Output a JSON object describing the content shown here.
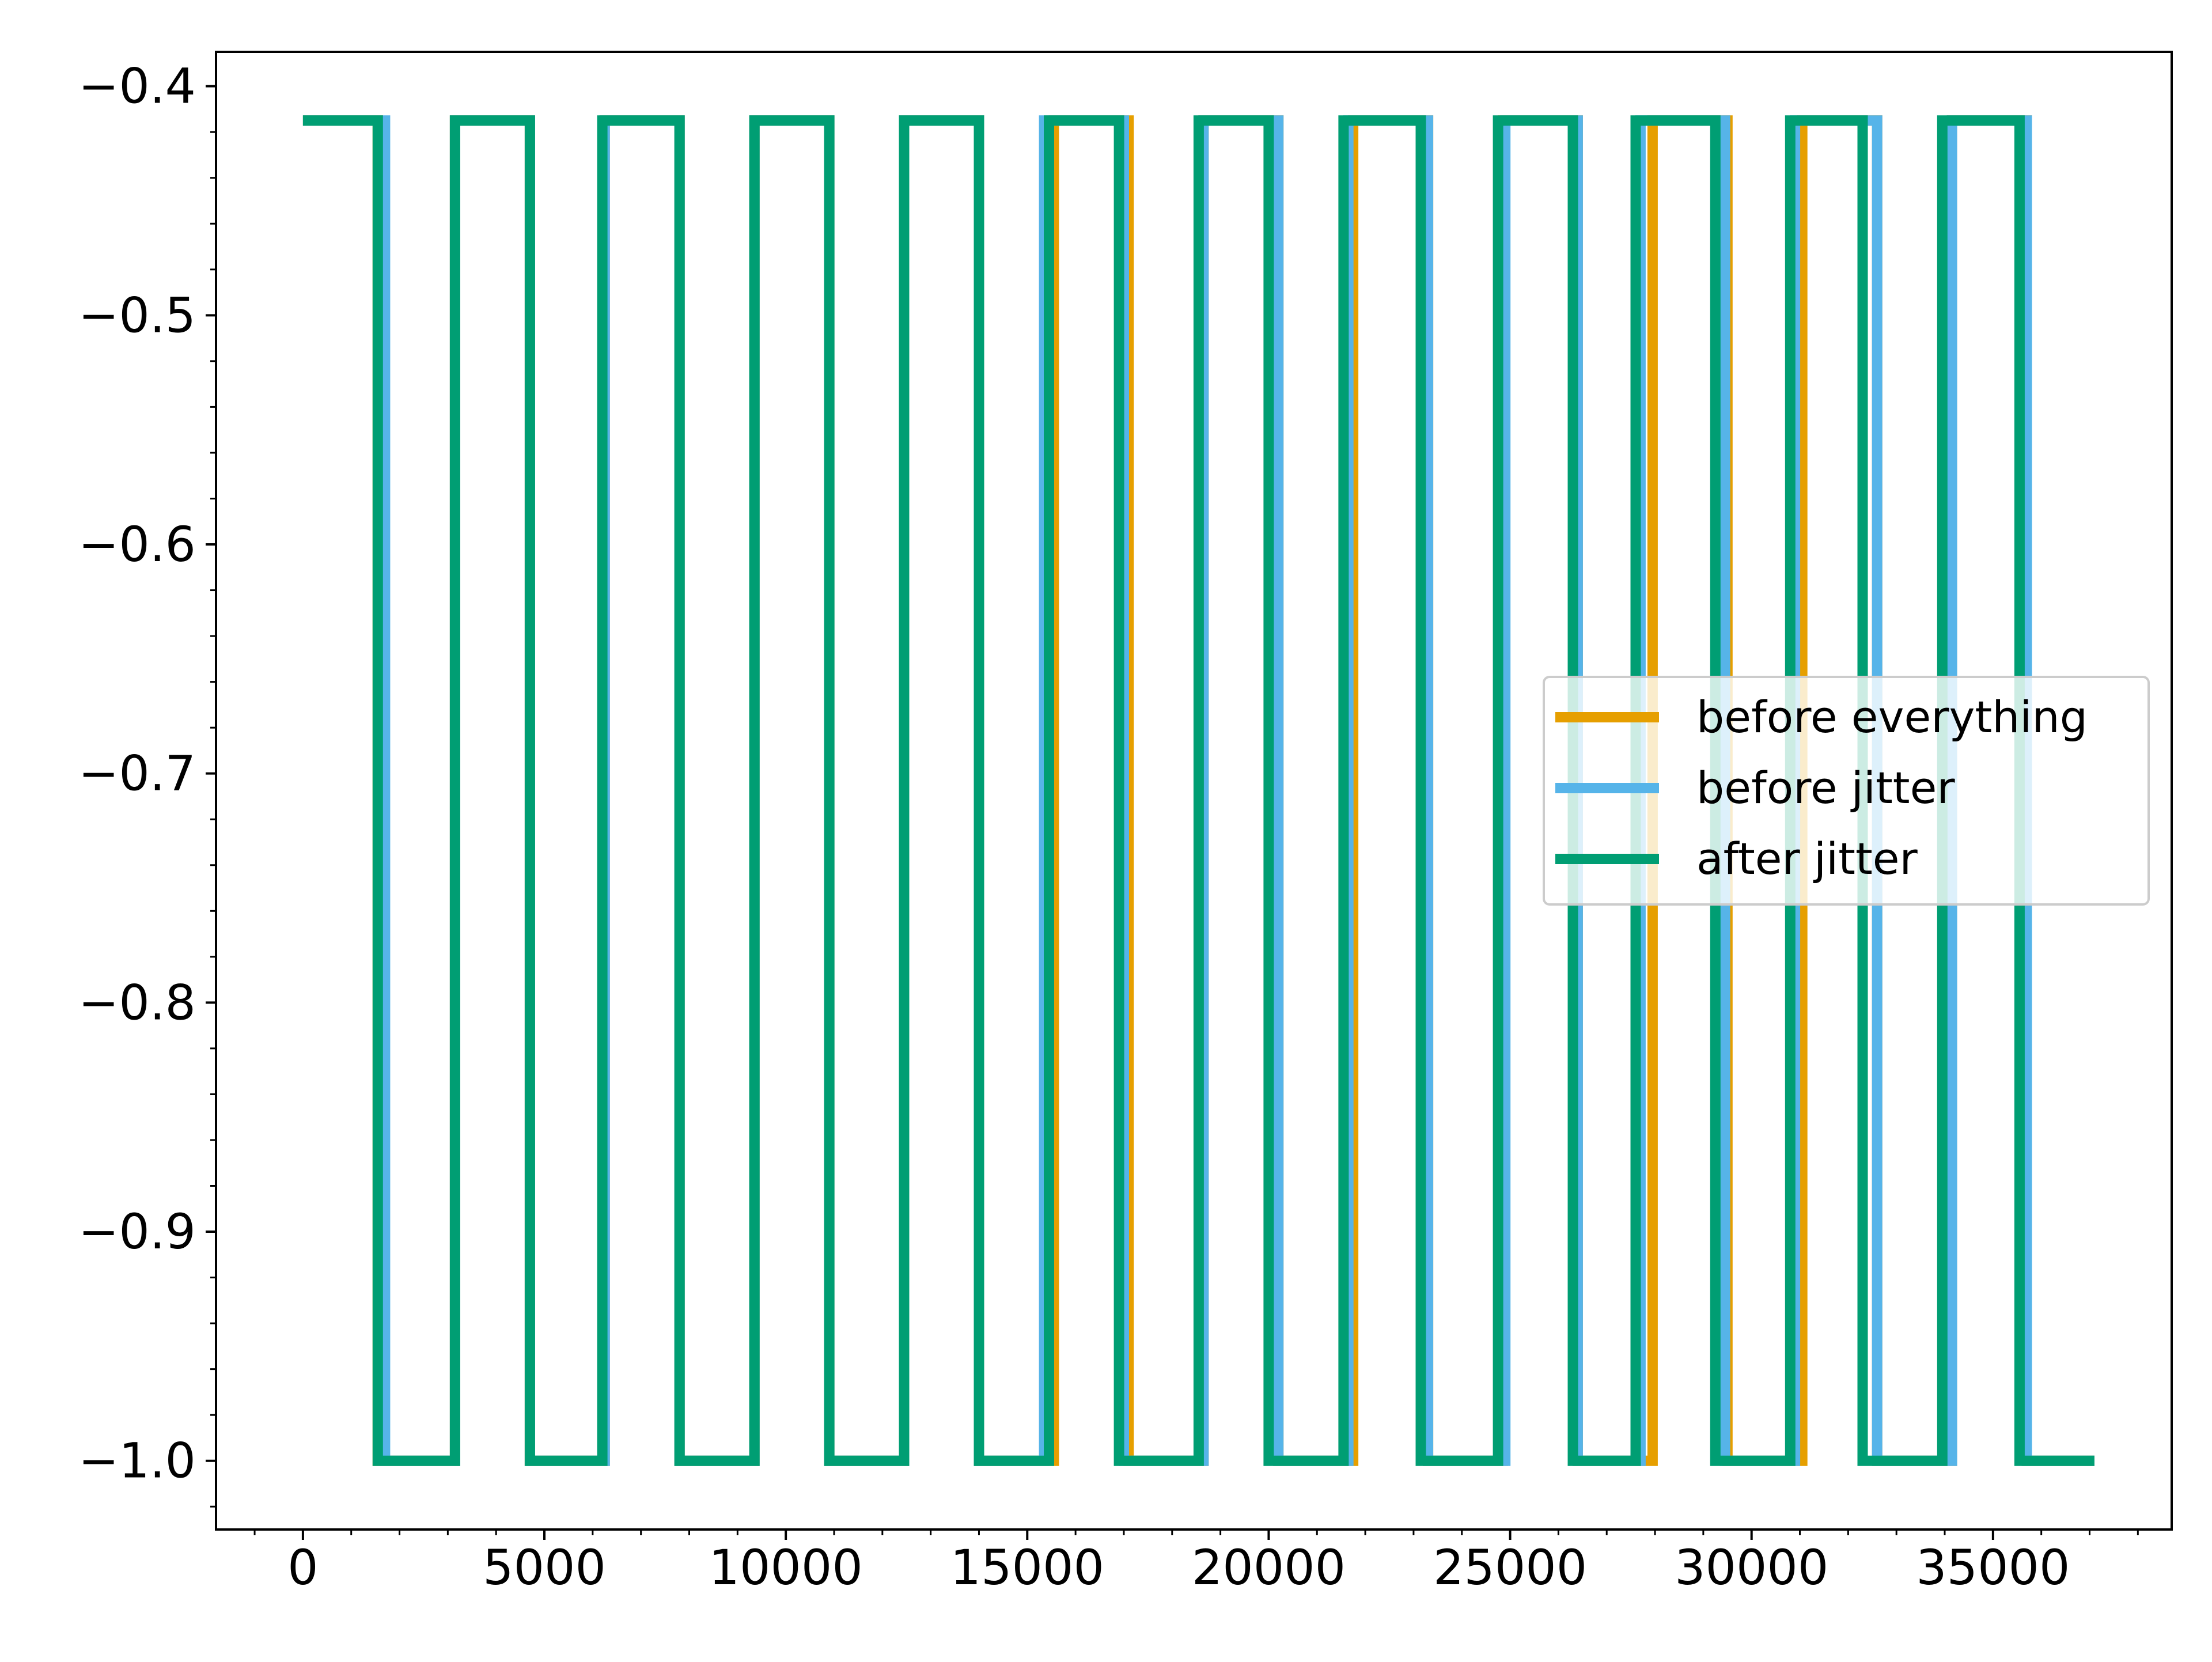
{
  "chart_data": {
    "type": "line",
    "title": "",
    "xlabel": "",
    "ylabel": "",
    "xlim": [
      -1800,
      38700
    ],
    "ylim": [
      -1.03,
      -0.385
    ],
    "x_ticks": [
      0,
      5000,
      10000,
      15000,
      20000,
      25000,
      30000,
      35000
    ],
    "x_tick_labels": [
      "0",
      "5000",
      "10000",
      "15000",
      "20000",
      "25000",
      "30000",
      "35000"
    ],
    "x_minor_step": 1000,
    "y_ticks": [
      -1.0,
      -0.9,
      -0.8,
      -0.7,
      -0.6,
      -0.5,
      -0.4
    ],
    "y_tick_labels": [
      "−1.0",
      "−0.9",
      "−0.8",
      "−0.7",
      "−0.6",
      "−0.5",
      "−0.4"
    ],
    "y_minor_step": 0.02,
    "grid": false,
    "legend_position": "center-right",
    "series": [
      {
        "name": "before everything",
        "color": "#E69F00",
        "x": [
          0,
          1550,
          1550,
          3150,
          3150,
          4700,
          4700,
          6250,
          6250,
          7800,
          7800,
          9350,
          9350,
          10900,
          10900,
          12450,
          12450,
          14000,
          14000,
          15550,
          15550,
          17100,
          17100,
          18650,
          18650,
          20200,
          20200,
          21750,
          21750,
          23300,
          23300,
          24850,
          24850,
          26400,
          26400,
          27950,
          27950,
          29500,
          29500,
          31050,
          31050,
          32600,
          32600,
          34150,
          34150,
          35700,
          35700,
          37100
        ],
        "y": [
          -0.415,
          -0.415,
          -1.0,
          -1.0,
          -0.415,
          -0.415,
          -1.0,
          -1.0,
          -0.415,
          -0.415,
          -1.0,
          -1.0,
          -0.415,
          -0.415,
          -1.0,
          -1.0,
          -0.415,
          -0.415,
          -1.0,
          -1.0,
          -0.415,
          -0.415,
          -1.0,
          -1.0,
          -0.415,
          -0.415,
          -1.0,
          -1.0,
          -0.415,
          -0.415,
          -1.0,
          -1.0,
          -0.415,
          -0.415,
          -1.0,
          -1.0,
          -0.415,
          -0.415,
          -1.0,
          -1.0,
          -0.415,
          -0.415,
          -1.0,
          -1.0,
          -0.415,
          -0.415,
          -1.0,
          -1.0
        ]
      },
      {
        "name": "before jitter",
        "color": "#56B4E9",
        "x": [
          0,
          1700,
          1700,
          3150,
          3150,
          4700,
          4700,
          6250,
          6250,
          7800,
          7800,
          9350,
          9350,
          10900,
          10900,
          12450,
          12450,
          14000,
          14000,
          15350,
          15350,
          17000,
          17000,
          18650,
          18650,
          20200,
          20200,
          21650,
          21650,
          23300,
          23300,
          24900,
          24900,
          26400,
          26400,
          27700,
          27700,
          29450,
          29450,
          30900,
          30900,
          32600,
          32600,
          34150,
          34150,
          35700,
          35700,
          37100
        ],
        "y": [
          -0.415,
          -0.415,
          -1.0,
          -1.0,
          -0.415,
          -0.415,
          -1.0,
          -1.0,
          -0.415,
          -0.415,
          -1.0,
          -1.0,
          -0.415,
          -0.415,
          -1.0,
          -1.0,
          -0.415,
          -0.415,
          -1.0,
          -1.0,
          -0.415,
          -0.415,
          -1.0,
          -1.0,
          -0.415,
          -0.415,
          -1.0,
          -1.0,
          -0.415,
          -0.415,
          -1.0,
          -1.0,
          -0.415,
          -0.415,
          -1.0,
          -1.0,
          -0.415,
          -0.415,
          -1.0,
          -1.0,
          -0.415,
          -0.415,
          -1.0,
          -1.0,
          -0.415,
          -0.415,
          -1.0,
          -1.0
        ]
      },
      {
        "name": "after jitter",
        "color": "#009E73",
        "x": [
          0,
          1550,
          1550,
          3150,
          3150,
          4700,
          4700,
          6200,
          6200,
          7800,
          7800,
          9350,
          9350,
          10900,
          10900,
          12450,
          12450,
          14000,
          14000,
          15450,
          15450,
          16900,
          16900,
          18550,
          18550,
          20000,
          20000,
          21550,
          21550,
          23150,
          23150,
          24750,
          24750,
          26300,
          26300,
          27600,
          27600,
          29250,
          29250,
          30800,
          30800,
          32300,
          32300,
          33950,
          33950,
          35550,
          35550,
          37100
        ],
        "y": [
          -0.415,
          -0.415,
          -1.0,
          -1.0,
          -0.415,
          -0.415,
          -1.0,
          -1.0,
          -0.415,
          -0.415,
          -1.0,
          -1.0,
          -0.415,
          -0.415,
          -1.0,
          -1.0,
          -0.415,
          -0.415,
          -1.0,
          -1.0,
          -0.415,
          -0.415,
          -1.0,
          -1.0,
          -0.415,
          -0.415,
          -1.0,
          -1.0,
          -0.415,
          -0.415,
          -1.0,
          -1.0,
          -0.415,
          -0.415,
          -1.0,
          -1.0,
          -0.415,
          -0.415,
          -1.0,
          -1.0,
          -0.415,
          -0.415,
          -1.0,
          -1.0,
          -0.415,
          -0.415,
          -1.0,
          -1.0
        ]
      }
    ]
  }
}
